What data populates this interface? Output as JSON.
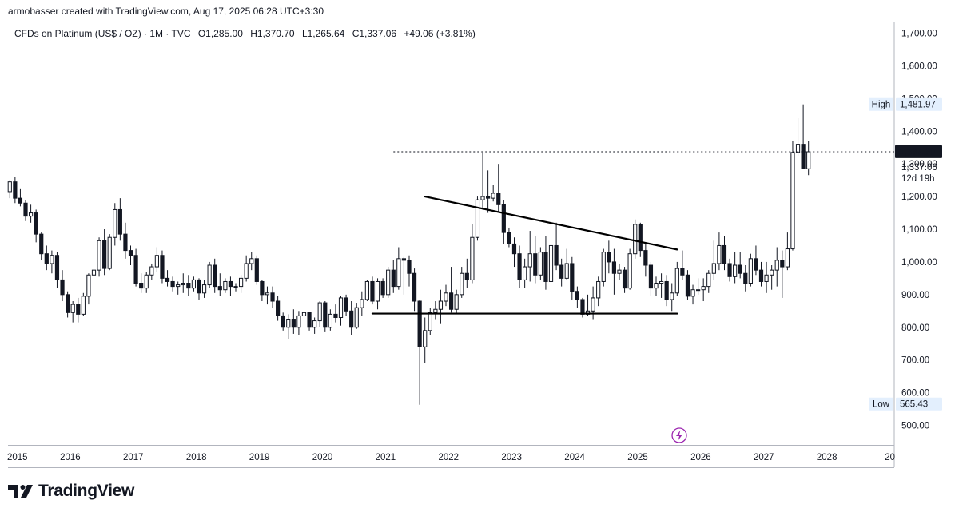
{
  "header": {
    "attribution": "armobasser created with TradingView.com, Aug 17, 2025 06:28 UTC+3:30"
  },
  "legend": {
    "symbol": "CFDs on Platinum (US$ / OZ) · 1M · TVC",
    "open": "O1,285.00",
    "high": "H1,370.70",
    "low": "L1,265.64",
    "close": "C1,337.06",
    "change": "+49.06 (+3.81%)"
  },
  "branding": {
    "name": "TradingView"
  },
  "colors": {
    "candle": "#131722",
    "up_fill": "#ffffff",
    "down_fill": "#131722",
    "label_bg": "#e3effd",
    "price_tag_bg": "#131722"
  },
  "chart_data": {
    "type": "candlestick",
    "title": "CFDs on Platinum (US$ / OZ) · 1M · TVC",
    "interval": "1M",
    "xlabel": "",
    "ylabel": "",
    "ylim": [
      440,
      1740
    ],
    "xlim": [
      "2015-01",
      "2028-12"
    ],
    "y_ticks": [
      "500.00",
      "600.00",
      "700.00",
      "800.00",
      "900.00",
      "1,000.00",
      "1,100.00",
      "1,200.00",
      "1,300.00",
      "1,400.00",
      "1,500.00",
      "1,600.00",
      "1,700.00"
    ],
    "x_ticks": [
      "2015",
      "2016",
      "2017",
      "2018",
      "2019",
      "2020",
      "2021",
      "2022",
      "2023",
      "2024",
      "2025",
      "2026",
      "2027",
      "2028",
      "20"
    ],
    "start": "2014-10",
    "ohlc": [
      [
        1235,
        1275,
        1185,
        1210
      ],
      [
        1210,
        1245,
        1195,
        1230
      ],
      [
        1230,
        1270,
        1205,
        1215
      ],
      [
        1215,
        1250,
        1195,
        1245
      ],
      [
        1245,
        1260,
        1180,
        1195
      ],
      [
        1195,
        1225,
        1170,
        1180
      ],
      [
        1180,
        1190,
        1125,
        1140
      ],
      [
        1140,
        1175,
        1120,
        1150
      ],
      [
        1150,
        1160,
        1060,
        1085
      ],
      [
        1085,
        1090,
        1005,
        1025
      ],
      [
        1025,
        1050,
        975,
        995
      ],
      [
        995,
        1035,
        965,
        1020
      ],
      [
        1020,
        1030,
        920,
        945
      ],
      [
        945,
        975,
        880,
        900
      ],
      [
        900,
        910,
        830,
        845
      ],
      [
        845,
        880,
        815,
        870
      ],
      [
        870,
        890,
        815,
        840
      ],
      [
        840,
        905,
        835,
        895
      ],
      [
        895,
        965,
        870,
        960
      ],
      [
        960,
        985,
        935,
        975
      ],
      [
        975,
        1075,
        955,
        1065
      ],
      [
        1065,
        1100,
        960,
        980
      ],
      [
        980,
        1085,
        975,
        1075
      ],
      [
        1075,
        1180,
        1050,
        1160
      ],
      [
        1160,
        1195,
        1065,
        1085
      ],
      [
        1085,
        1120,
        1010,
        1035
      ],
      [
        1035,
        1050,
        990,
        1020
      ],
      [
        1020,
        1040,
        925,
        935
      ],
      [
        935,
        965,
        905,
        920
      ],
      [
        920,
        970,
        905,
        960
      ],
      [
        960,
        995,
        945,
        985
      ],
      [
        985,
        1045,
        970,
        1020
      ],
      [
        1020,
        1035,
        935,
        950
      ],
      [
        950,
        975,
        925,
        940
      ],
      [
        940,
        955,
        910,
        925
      ],
      [
        925,
        940,
        900,
        930
      ],
      [
        930,
        965,
        905,
        935
      ],
      [
        935,
        960,
        895,
        920
      ],
      [
        920,
        955,
        910,
        945
      ],
      [
        945,
        950,
        885,
        905
      ],
      [
        905,
        945,
        890,
        930
      ],
      [
        930,
        1000,
        920,
        990
      ],
      [
        990,
        1010,
        905,
        925
      ],
      [
        925,
        965,
        895,
        915
      ],
      [
        915,
        950,
        905,
        940
      ],
      [
        940,
        955,
        895,
        925
      ],
      [
        925,
        935,
        910,
        925
      ],
      [
        925,
        960,
        905,
        950
      ],
      [
        950,
        1020,
        940,
        995
      ],
      [
        995,
        1030,
        975,
        1010
      ],
      [
        1010,
        1020,
        930,
        940
      ],
      [
        940,
        945,
        880,
        900
      ],
      [
        900,
        925,
        870,
        905
      ],
      [
        905,
        925,
        860,
        880
      ],
      [
        880,
        895,
        820,
        835
      ],
      [
        835,
        845,
        790,
        800
      ],
      [
        800,
        840,
        765,
        825
      ],
      [
        825,
        855,
        780,
        800
      ],
      [
        800,
        850,
        775,
        835
      ],
      [
        835,
        870,
        790,
        845
      ],
      [
        845,
        845,
        790,
        800
      ],
      [
        800,
        830,
        780,
        820
      ],
      [
        820,
        880,
        800,
        875
      ],
      [
        875,
        880,
        785,
        800
      ],
      [
        800,
        855,
        790,
        840
      ],
      [
        840,
        870,
        815,
        830
      ],
      [
        830,
        895,
        805,
        890
      ],
      [
        890,
        900,
        835,
        850
      ],
      [
        850,
        880,
        775,
        800
      ],
      [
        800,
        875,
        795,
        860
      ],
      [
        860,
        910,
        835,
        885
      ],
      [
        885,
        945,
        880,
        940
      ],
      [
        940,
        955,
        870,
        880
      ],
      [
        880,
        950,
        855,
        940
      ],
      [
        940,
        950,
        890,
        900
      ],
      [
        900,
        985,
        890,
        975
      ],
      [
        975,
        1005,
        905,
        925
      ],
      [
        925,
        1045,
        915,
        1010
      ],
      [
        1010,
        1015,
        900,
        1005
      ],
      [
        1005,
        1020,
        925,
        965
      ],
      [
        965,
        980,
        850,
        880
      ],
      [
        880,
        885,
        563,
        740
      ],
      [
        740,
        830,
        690,
        790
      ],
      [
        790,
        860,
        775,
        845
      ],
      [
        845,
        880,
        825,
        855
      ],
      [
        855,
        915,
        810,
        880
      ],
      [
        880,
        930,
        865,
        905
      ],
      [
        905,
        985,
        845,
        855
      ],
      [
        855,
        915,
        840,
        900
      ],
      [
        900,
        985,
        890,
        965
      ],
      [
        965,
        1010,
        920,
        945
      ],
      [
        945,
        1115,
        935,
        1075
      ],
      [
        1075,
        1200,
        1065,
        1190
      ],
      [
        1190,
        1335,
        1160,
        1200
      ],
      [
        1200,
        1280,
        1150,
        1195
      ],
      [
        1195,
        1235,
        1185,
        1210
      ],
      [
        1210,
        1300,
        1155,
        1175
      ],
      [
        1175,
        1190,
        1055,
        1090
      ],
      [
        1090,
        1105,
        1045,
        1055
      ],
      [
        1055,
        1075,
        985,
        1025
      ],
      [
        1025,
        1050,
        920,
        945
      ],
      [
        945,
        1010,
        920,
        985
      ],
      [
        985,
        1095,
        940,
        1025
      ],
      [
        1025,
        1080,
        935,
        960
      ],
      [
        960,
        1045,
        945,
        1030
      ],
      [
        1030,
        1080,
        915,
        940
      ],
      [
        940,
        1095,
        930,
        1050
      ],
      [
        1050,
        1120,
        975,
        990
      ],
      [
        990,
        1010,
        925,
        950
      ],
      [
        950,
        1040,
        945,
        995
      ],
      [
        995,
        1015,
        885,
        910
      ],
      [
        910,
        925,
        860,
        885
      ],
      [
        885,
        890,
        830,
        840
      ],
      [
        840,
        900,
        835,
        850
      ],
      [
        850,
        925,
        825,
        890
      ],
      [
        890,
        955,
        865,
        940
      ],
      [
        940,
        1040,
        925,
        1030
      ],
      [
        1030,
        1065,
        965,
        1000
      ],
      [
        1000,
        1040,
        900,
        965
      ],
      [
        965,
        995,
        945,
        975
      ],
      [
        975,
        985,
        905,
        920
      ],
      [
        920,
        1040,
        915,
        1025
      ],
      [
        1025,
        1130,
        1010,
        1115
      ],
      [
        1115,
        1120,
        1015,
        1035
      ],
      [
        1035,
        1055,
        955,
        990
      ],
      [
        990,
        1000,
        895,
        920
      ],
      [
        920,
        955,
        895,
        935
      ],
      [
        935,
        965,
        890,
        940
      ],
      [
        940,
        960,
        865,
        885
      ],
      [
        885,
        935,
        850,
        905
      ],
      [
        905,
        1000,
        895,
        980
      ],
      [
        980,
        1035,
        945,
        960
      ],
      [
        960,
        975,
        885,
        895
      ],
      [
        895,
        930,
        870,
        915
      ],
      [
        915,
        950,
        900,
        915
      ],
      [
        915,
        950,
        880,
        925
      ],
      [
        925,
        975,
        905,
        965
      ],
      [
        965,
        1065,
        945,
        995
      ],
      [
        995,
        1090,
        975,
        1050
      ],
      [
        1050,
        1080,
        975,
        995
      ],
      [
        995,
        1010,
        940,
        955
      ],
      [
        955,
        1030,
        935,
        990
      ],
      [
        990,
        1030,
        950,
        965
      ],
      [
        965,
        990,
        910,
        935
      ],
      [
        935,
        1025,
        925,
        1010
      ],
      [
        1010,
        1050,
        960,
        975
      ],
      [
        975,
        1000,
        925,
        940
      ],
      [
        940,
        1000,
        905,
        960
      ],
      [
        960,
        990,
        915,
        975
      ],
      [
        975,
        1045,
        925,
        1005
      ],
      [
        1005,
        1035,
        890,
        985
      ],
      [
        985,
        1090,
        975,
        1040
      ],
      [
        1040,
        1370,
        1035,
        1335
      ],
      [
        1335,
        1440,
        1325,
        1360
      ],
      [
        1360,
        1482,
        1285,
        1287
      ],
      [
        1285,
        1370.7,
        1265.64,
        1337.06
      ]
    ],
    "drawings": [
      {
        "type": "trendline",
        "label": "descending resistance",
        "from": [
          "2021-08",
          1200
        ],
        "to": [
          "2025-08",
          1038
        ]
      },
      {
        "type": "horizontal",
        "label": "support",
        "from": [
          "2020-10",
          842
        ],
        "to": [
          "2025-08",
          842
        ]
      },
      {
        "type": "dotted",
        "label": "last price line",
        "from": [
          "2021-02",
          1337.06
        ],
        "to": [
          "2028-12",
          1337.06
        ]
      }
    ],
    "labels": {
      "high_tag": "High",
      "high_value": "1,481.97",
      "low_tag": "Low",
      "low_value": "565.43",
      "last_price": "1,337.30",
      "close_value": "1,337.06",
      "countdown": "12d 19h"
    }
  }
}
